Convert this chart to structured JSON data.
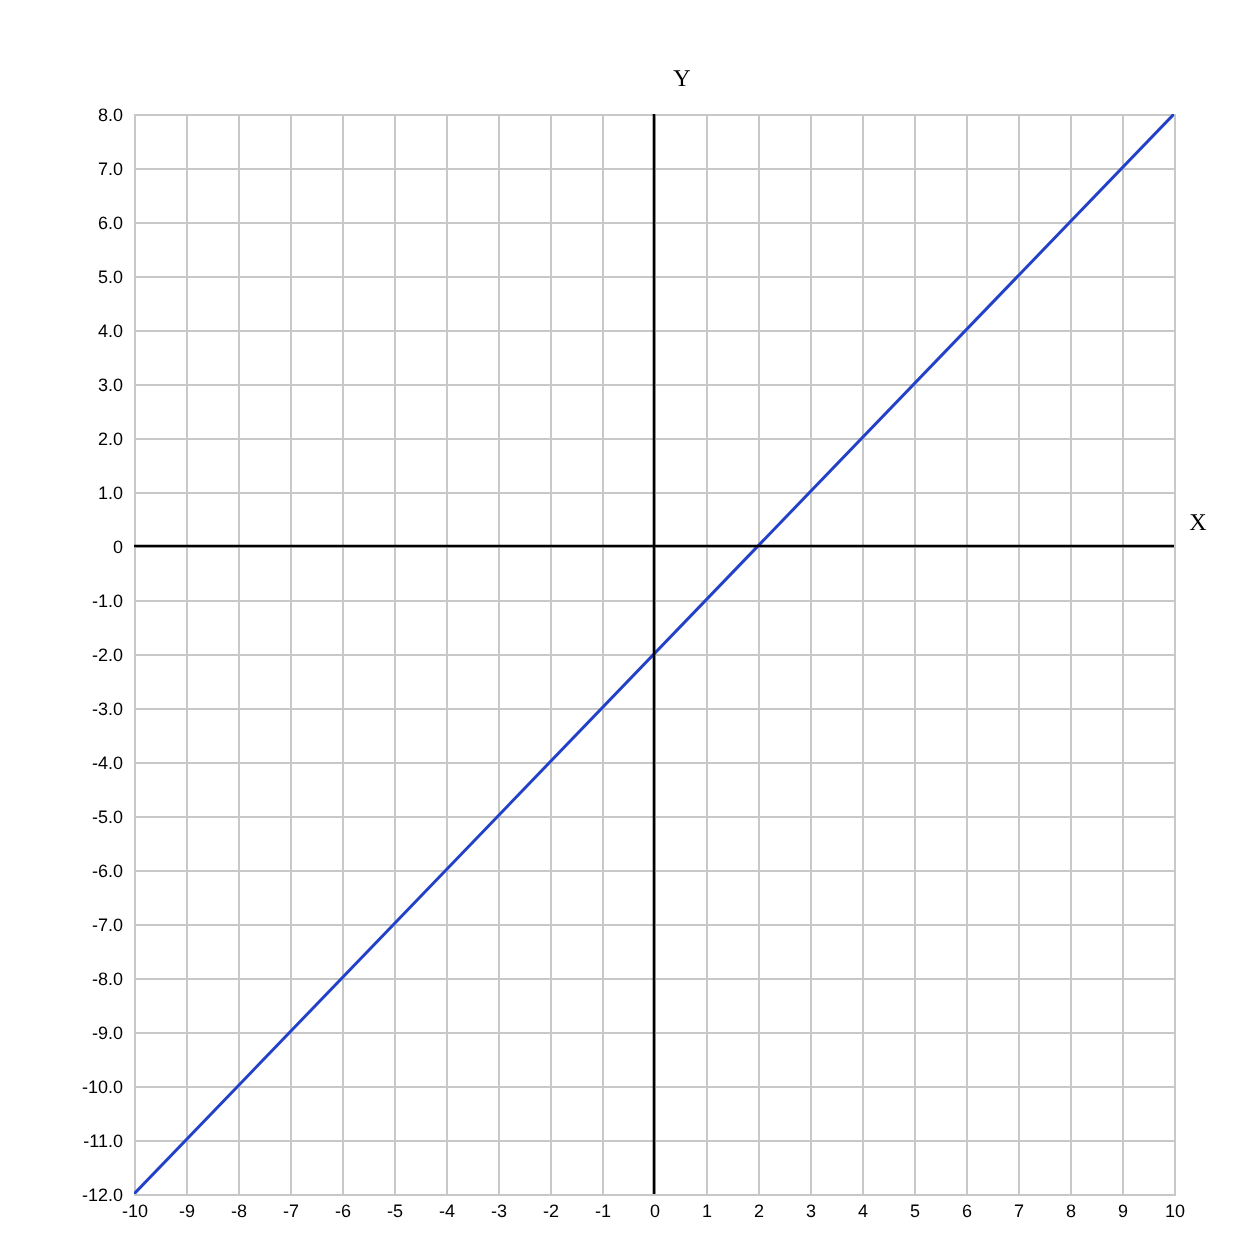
{
  "chart_data": {
    "type": "line",
    "xlabel": "X",
    "ylabel": "Y",
    "x": [
      -10,
      10
    ],
    "series": [
      {
        "color": "#2340c8",
        "values": [
          -12,
          8
        ]
      }
    ],
    "xlim": [
      -10,
      10
    ],
    "xticks": [
      -10,
      -9,
      -8,
      -7,
      -6,
      -5,
      -4,
      -3,
      -2,
      -1,
      0,
      1,
      2,
      3,
      4,
      5,
      6,
      7,
      8,
      9,
      10
    ],
    "ylim": [
      -12,
      8
    ],
    "yticks": [
      {
        "value": -12,
        "label": "-12.0"
      },
      {
        "value": -11,
        "label": "-11.0"
      },
      {
        "value": -10,
        "label": "-10.0"
      },
      {
        "value": -9,
        "label": "-9.0"
      },
      {
        "value": -8,
        "label": "-8.0"
      },
      {
        "value": -7,
        "label": "-7.0"
      },
      {
        "value": -6,
        "label": "-6.0"
      },
      {
        "value": -5,
        "label": "-5.0"
      },
      {
        "value": -4,
        "label": "-4.0"
      },
      {
        "value": -3,
        "label": "-3.0"
      },
      {
        "value": -2,
        "label": "-2.0"
      },
      {
        "value": -1,
        "label": "-1.0"
      },
      0,
      {
        "value": 1,
        "label": "1.0"
      },
      {
        "value": 2,
        "label": "2.0"
      },
      {
        "value": 3,
        "label": "3.0"
      },
      {
        "value": 4,
        "label": "4.0"
      },
      {
        "value": 5,
        "label": "5.0"
      },
      {
        "value": 6,
        "label": "6.0"
      },
      {
        "value": 7,
        "label": "7.0"
      },
      {
        "value": 8,
        "label": "8.0"
      }
    ],
    "grid": true,
    "marker": "none",
    "line_style": "solid"
  }
}
